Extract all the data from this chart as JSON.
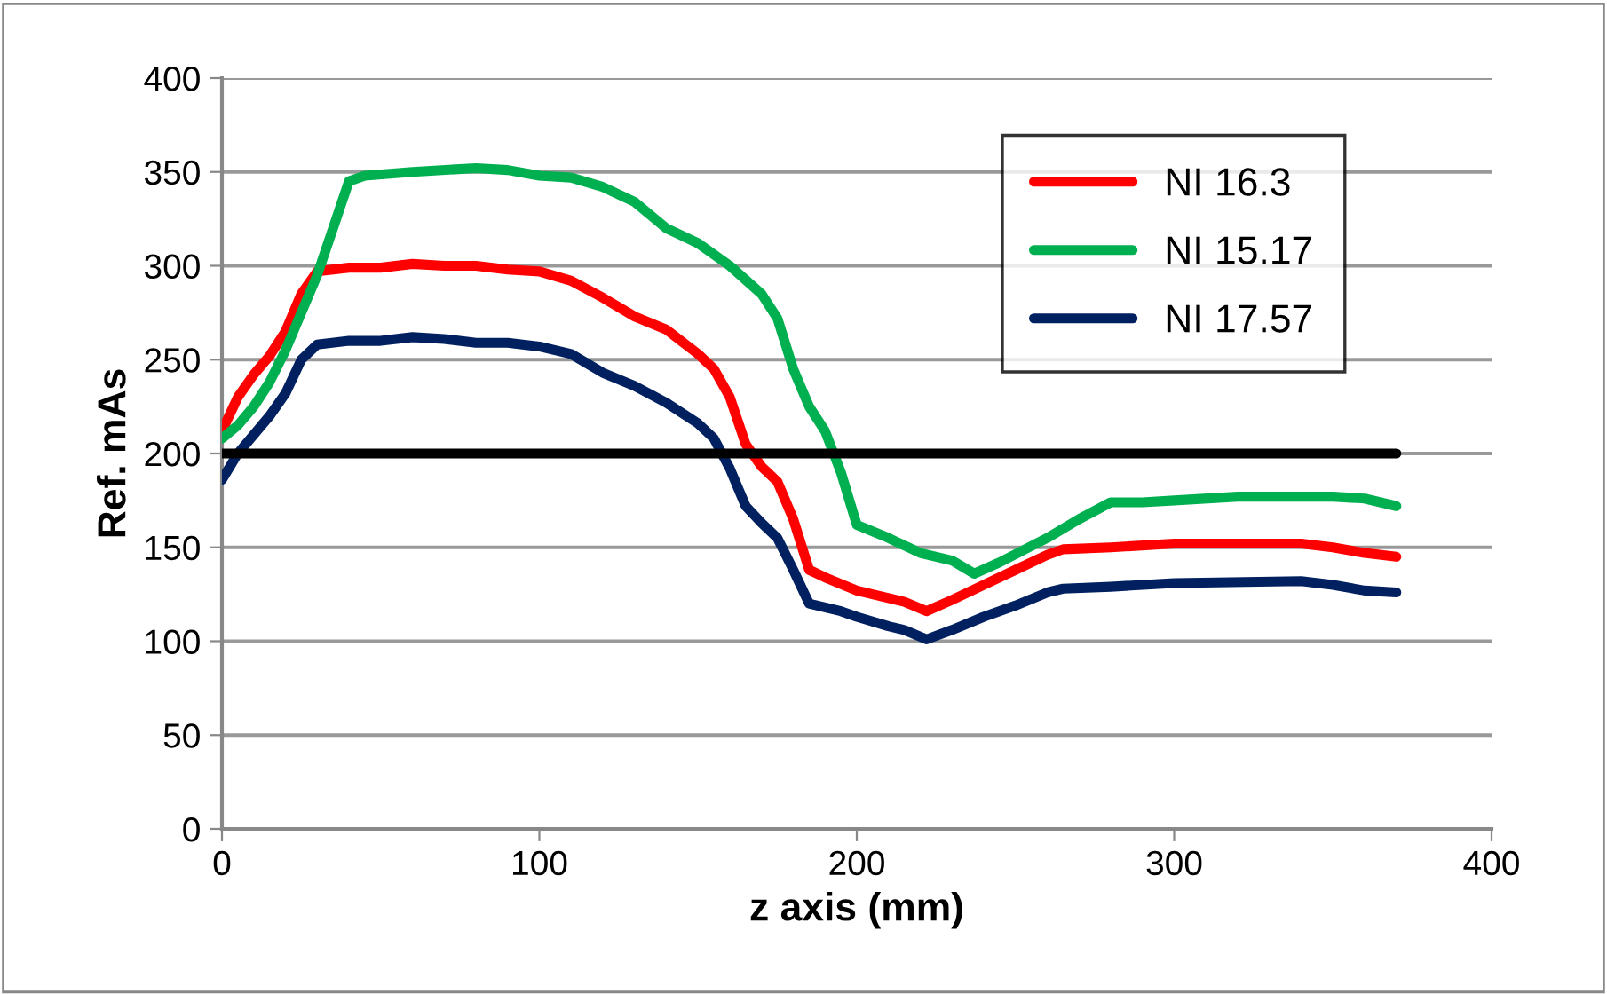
{
  "chart_data": {
    "type": "line",
    "xlabel": "z axis (mm)",
    "ylabel": "Ref. mAs",
    "xlim": [
      0,
      400
    ],
    "xticks": [
      0,
      100,
      200,
      300,
      400
    ],
    "ylim": [
      0,
      400
    ],
    "yticks": [
      0,
      50,
      100,
      150,
      200,
      250,
      300,
      350,
      400
    ],
    "grid": "y",
    "legend": "top right",
    "marker": "none",
    "line_style": "solid",
    "series": [
      {
        "name": "NI 16.3",
        "color": "#ff0000",
        "x": [
          0,
          5,
          10,
          15,
          20,
          25,
          30,
          40,
          50,
          60,
          70,
          80,
          90,
          100,
          110,
          120,
          130,
          140,
          150,
          155,
          160,
          165,
          170,
          175,
          180,
          185,
          190,
          200,
          210,
          215,
          222,
          230,
          240,
          250,
          260,
          265,
          280,
          300,
          340,
          350,
          360,
          370
        ],
        "values": [
          212,
          230,
          242,
          252,
          265,
          285,
          297,
          299,
          299,
          301,
          300,
          300,
          298,
          297,
          292,
          283,
          273,
          266,
          253,
          245,
          230,
          205,
          193,
          185,
          165,
          138,
          134,
          127,
          123,
          121,
          116,
          122,
          130,
          138,
          146,
          149,
          150,
          152,
          152,
          150,
          147,
          145
        ]
      },
      {
        "name": "NI 15.17",
        "color": "#00b050",
        "x": [
          0,
          5,
          10,
          15,
          20,
          25,
          30,
          35,
          40,
          45,
          60,
          80,
          90,
          100,
          110,
          120,
          130,
          140,
          150,
          160,
          170,
          175,
          180,
          185,
          190,
          195,
          200,
          210,
          220,
          230,
          237,
          245,
          260,
          270,
          280,
          290,
          300,
          320,
          350,
          360,
          370
        ],
        "values": [
          208,
          215,
          225,
          238,
          255,
          275,
          295,
          320,
          345,
          348,
          350,
          352,
          351,
          348,
          347,
          342,
          334,
          320,
          312,
          300,
          285,
          272,
          245,
          225,
          212,
          190,
          162,
          155,
          147,
          143,
          136,
          142,
          155,
          165,
          174,
          174,
          175,
          177,
          177,
          176,
          172
        ]
      },
      {
        "name": "NI 17.57",
        "color": "#002060",
        "x": [
          0,
          5,
          10,
          15,
          20,
          25,
          30,
          40,
          50,
          60,
          70,
          80,
          90,
          100,
          110,
          120,
          130,
          140,
          150,
          155,
          160,
          165,
          170,
          175,
          180,
          185,
          195,
          200,
          210,
          215,
          222,
          230,
          240,
          250,
          260,
          265,
          280,
          300,
          340,
          350,
          360,
          370
        ],
        "values": [
          186,
          200,
          210,
          220,
          232,
          250,
          258,
          260,
          260,
          262,
          261,
          259,
          259,
          257,
          253,
          243,
          236,
          227,
          216,
          208,
          192,
          172,
          163,
          155,
          138,
          120,
          116,
          113,
          108,
          106,
          101,
          106,
          113,
          119,
          126,
          128,
          129,
          131,
          132,
          130,
          127,
          126
        ]
      },
      {
        "color": "#000000",
        "x": [
          0,
          370
        ],
        "values": [
          200,
          200
        ]
      }
    ]
  }
}
